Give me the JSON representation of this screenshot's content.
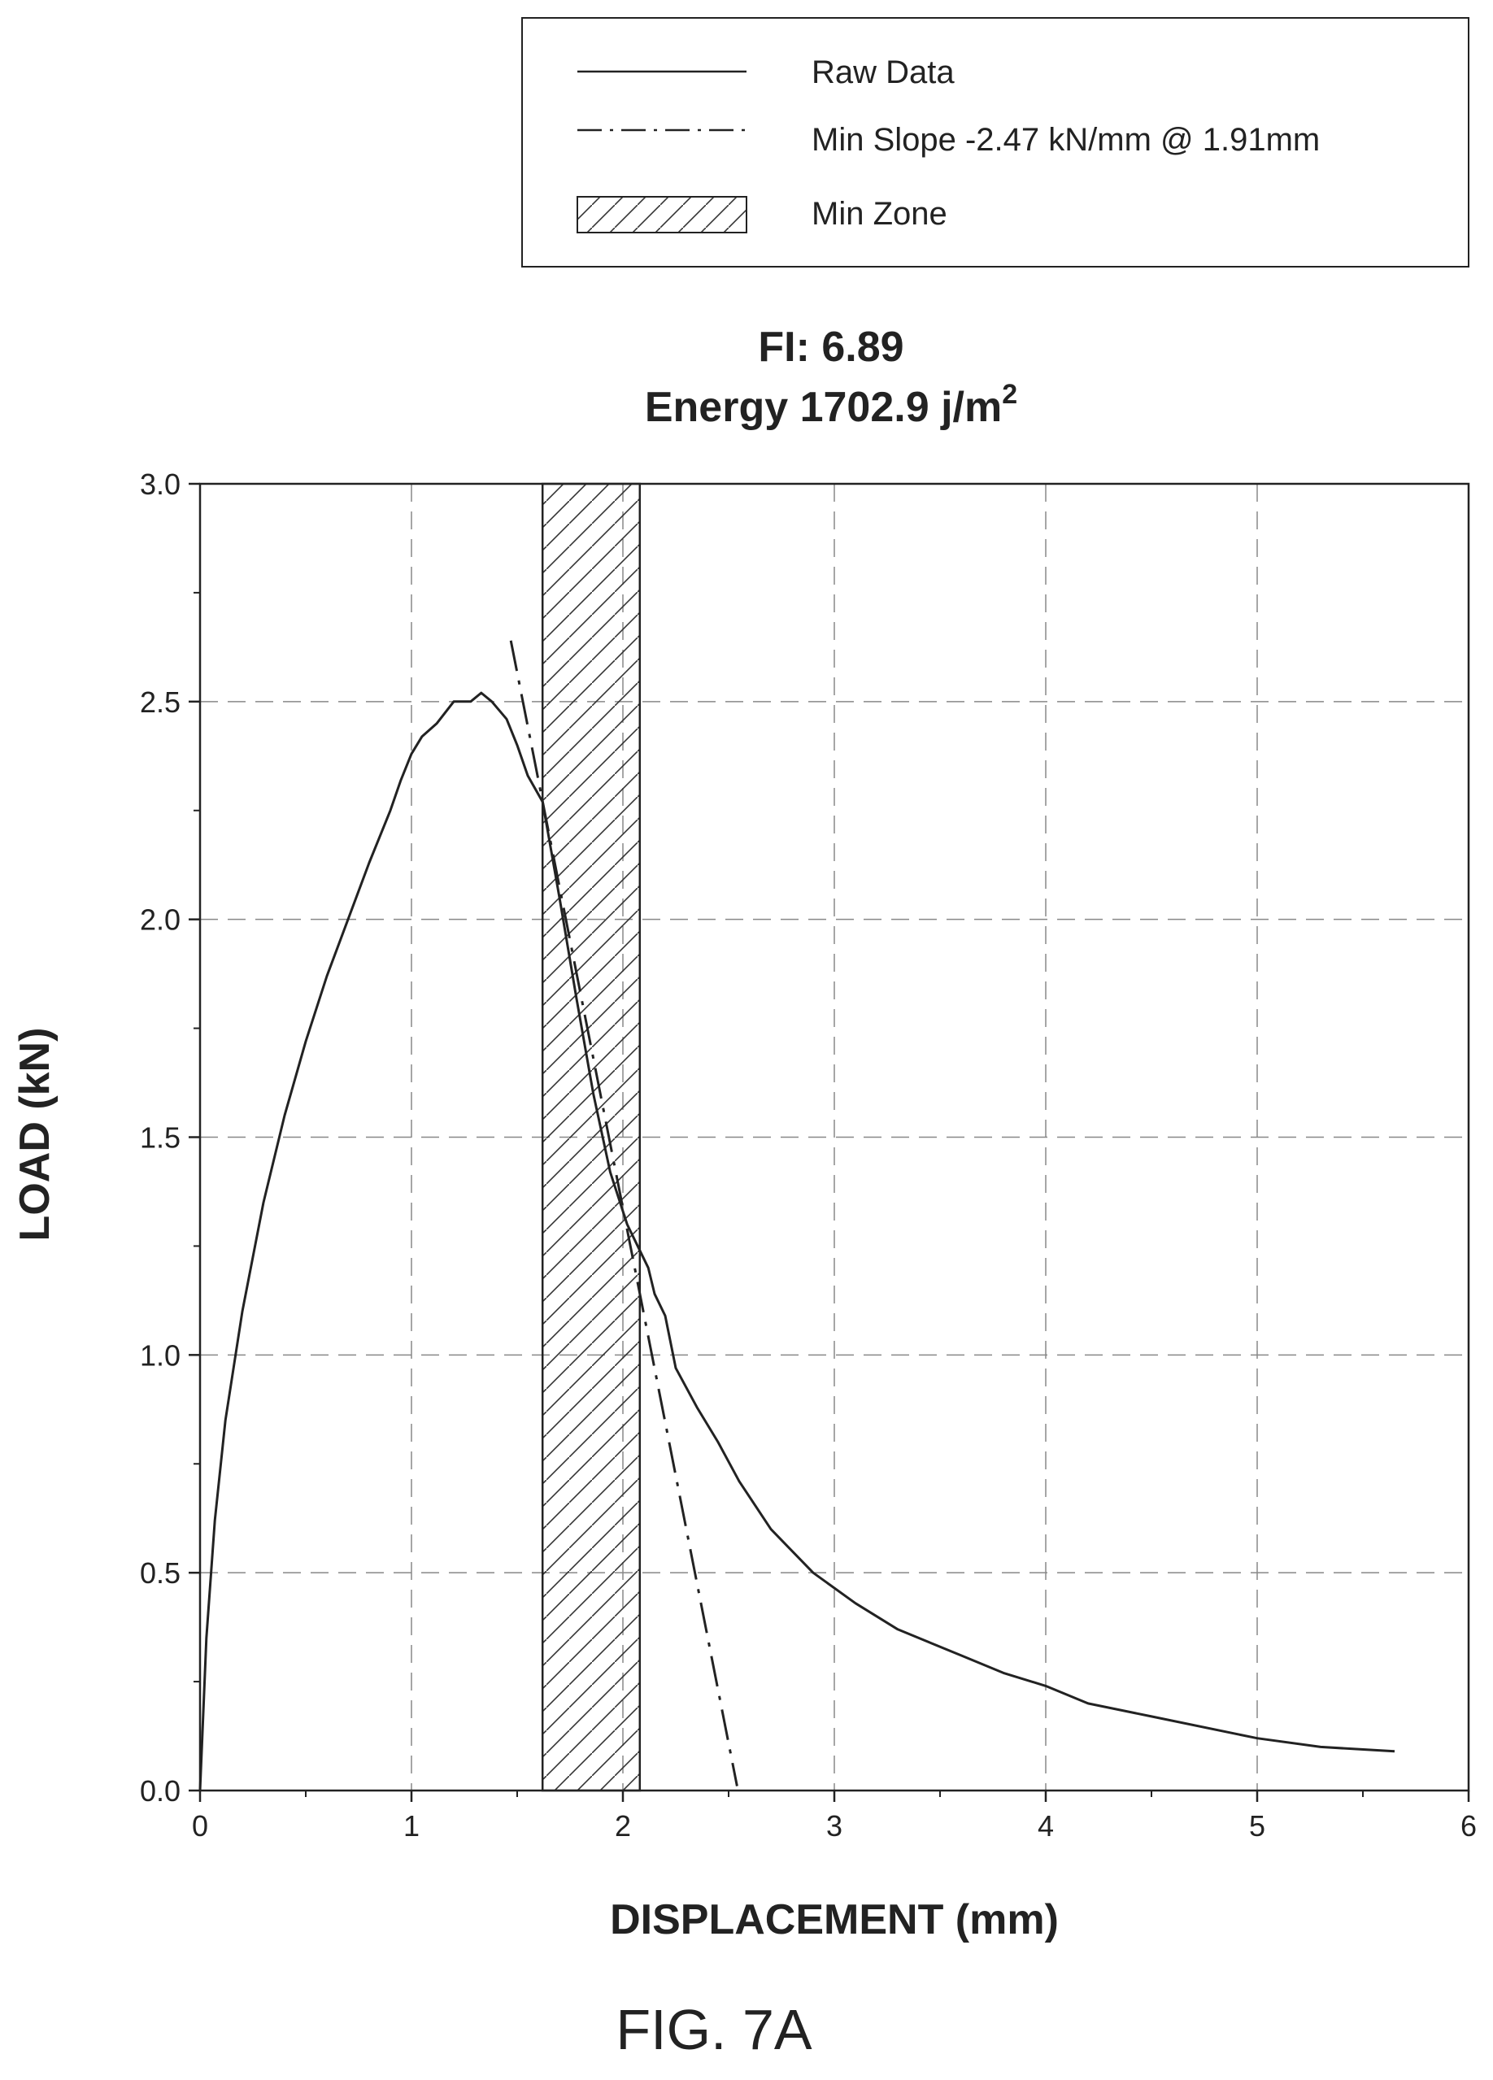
{
  "figure_label": "FIG. 7A",
  "legend": {
    "raw_label": "Raw Data",
    "slope_label": "Min Slope -2.47 kN/mm @ 1.91mm",
    "zone_label": "Min Zone"
  },
  "title": {
    "line1": "FI: 6.89",
    "line2_prefix": "Energy 1702.9 j/m",
    "line2_sup": "2"
  },
  "colors": {
    "ink": "#222222",
    "grid": "#888888"
  },
  "chart_data": {
    "type": "line",
    "xlabel": "DISPLACEMENT (mm)",
    "ylabel": "LOAD (kN)",
    "xlim": [
      0,
      6
    ],
    "ylim": [
      0,
      3.0
    ],
    "xticks": [
      0,
      1,
      2,
      3,
      4,
      5,
      6
    ],
    "xtick_labels": [
      "0",
      "1",
      "2",
      "3",
      "4",
      "5",
      "6"
    ],
    "yticks": [
      0,
      0.5,
      1.0,
      1.5,
      2.0,
      2.5,
      3.0
    ],
    "ytick_labels": [
      "0.0",
      "0.5",
      "1.0",
      "1.5",
      "2.0",
      "2.5",
      "3.0"
    ],
    "grid": true,
    "legend_position": "top-right",
    "min_zone": {
      "x_start": 1.62,
      "x_end": 2.08
    },
    "series": [
      {
        "name": "Raw Data",
        "style": "solid",
        "points": [
          [
            0,
            0
          ],
          [
            0.03,
            0.35
          ],
          [
            0.07,
            0.62
          ],
          [
            0.12,
            0.85
          ],
          [
            0.2,
            1.1
          ],
          [
            0.3,
            1.35
          ],
          [
            0.4,
            1.55
          ],
          [
            0.5,
            1.72
          ],
          [
            0.6,
            1.87
          ],
          [
            0.7,
            2.0
          ],
          [
            0.8,
            2.13
          ],
          [
            0.9,
            2.25
          ],
          [
            0.95,
            2.32
          ],
          [
            1.0,
            2.38
          ],
          [
            1.05,
            2.42
          ],
          [
            1.12,
            2.45
          ],
          [
            1.2,
            2.5
          ],
          [
            1.28,
            2.5
          ],
          [
            1.33,
            2.52
          ],
          [
            1.38,
            2.5
          ],
          [
            1.45,
            2.46
          ],
          [
            1.5,
            2.4
          ],
          [
            1.55,
            2.33
          ],
          [
            1.62,
            2.27
          ],
          [
            1.7,
            2.05
          ],
          [
            1.78,
            1.82
          ],
          [
            1.86,
            1.6
          ],
          [
            1.94,
            1.42
          ],
          [
            2.02,
            1.3
          ],
          [
            2.08,
            1.24
          ],
          [
            2.12,
            1.2
          ],
          [
            2.15,
            1.14
          ],
          [
            2.2,
            1.09
          ],
          [
            2.25,
            0.97
          ],
          [
            2.35,
            0.88
          ],
          [
            2.45,
            0.8
          ],
          [
            2.55,
            0.71
          ],
          [
            2.7,
            0.6
          ],
          [
            2.9,
            0.5
          ],
          [
            3.1,
            0.43
          ],
          [
            3.3,
            0.37
          ],
          [
            3.6,
            0.31
          ],
          [
            3.8,
            0.27
          ],
          [
            4.0,
            0.24
          ],
          [
            4.2,
            0.2
          ],
          [
            4.5,
            0.17
          ],
          [
            5.0,
            0.12
          ],
          [
            5.3,
            0.1
          ],
          [
            5.65,
            0.09
          ]
        ]
      },
      {
        "name": "Min Slope -2.47 kN/mm @ 1.91mm",
        "style": "dash-dot",
        "points": [
          [
            1.47,
            2.64
          ],
          [
            2.54,
            0.01
          ]
        ]
      }
    ]
  }
}
